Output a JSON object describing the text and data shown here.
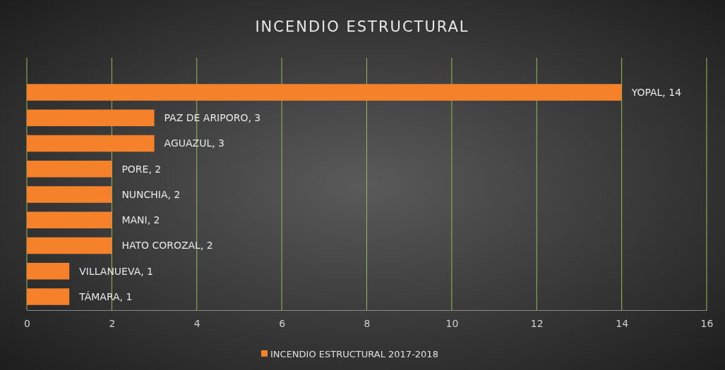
{
  "chart_data": {
    "type": "bar",
    "orientation": "horizontal",
    "title": "INCENDIO ESTRUCTURAL",
    "categories": [
      "YOPAL, 14",
      "PAZ DE ARIPORO, 3",
      "AGUAZUL, 3",
      "PORE, 2",
      "NUNCHIA, 2",
      "MANI, 2",
      "HATO COROZAL, 2",
      "VILLANUEVA, 1",
      "TÁMARA, 1"
    ],
    "series": [
      {
        "name": "INCENDIO ESTRUCTURAL 2017-2018",
        "color": "#f5822a",
        "values": [
          14,
          3,
          3,
          2,
          2,
          2,
          2,
          1,
          1
        ]
      }
    ],
    "xlim": [
      0,
      16
    ],
    "xticks": [
      0,
      2,
      4,
      6,
      8,
      10,
      12,
      14,
      16
    ],
    "grid": "x",
    "legend": "bottom",
    "tick_labels": "x"
  }
}
